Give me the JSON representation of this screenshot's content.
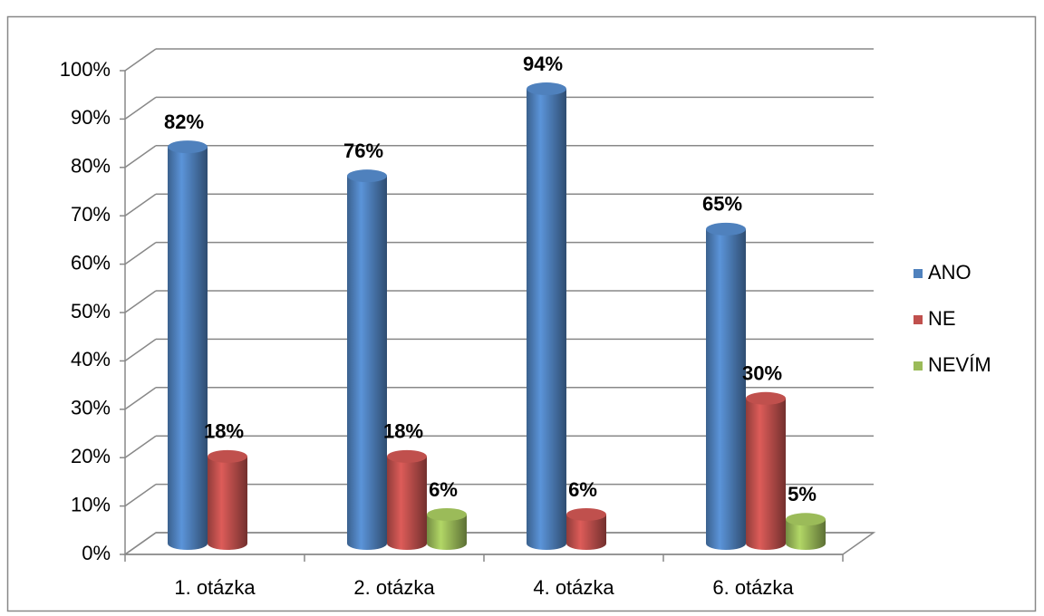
{
  "chart_data": {
    "type": "bar3d",
    "categories": [
      "1. otázka",
      "2. otázka",
      "4. otázka",
      "6. otázka"
    ],
    "series": [
      {
        "name": "ANO",
        "color": "#4f81bd",
        "values": [
          82,
          76,
          94,
          65
        ],
        "value_labels": [
          "82%",
          "76%",
          "94%",
          "65%"
        ]
      },
      {
        "name": "NE",
        "color": "#c0504d",
        "values": [
          18,
          18,
          6,
          30
        ],
        "value_labels": [
          "18%",
          "18%",
          "6%",
          "30%"
        ]
      },
      {
        "name": "NEVÍM",
        "color": "#9bbb59",
        "values": [
          null,
          6,
          null,
          5
        ],
        "value_labels": [
          null,
          "6%",
          null,
          "5%"
        ]
      }
    ],
    "ylim": [
      0,
      100
    ],
    "yticks": [
      {
        "value": 0,
        "label": "0%"
      },
      {
        "value": 10,
        "label": "10%"
      },
      {
        "value": 20,
        "label": "20%"
      },
      {
        "value": 30,
        "label": "30%"
      },
      {
        "value": 40,
        "label": "40%"
      },
      {
        "value": 50,
        "label": "50%"
      },
      {
        "value": 60,
        "label": "60%"
      },
      {
        "value": 70,
        "label": "70%"
      },
      {
        "value": 80,
        "label": "80%"
      },
      {
        "value": 90,
        "label": "90%"
      },
      {
        "value": 100,
        "label": "100%"
      }
    ],
    "grid": true,
    "legend": "right"
  }
}
